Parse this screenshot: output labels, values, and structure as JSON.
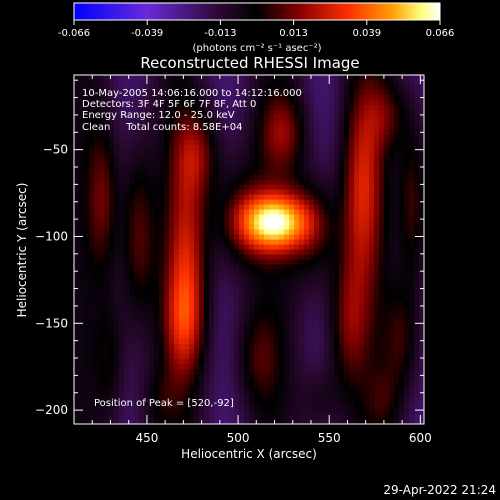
{
  "colorbar": {
    "ticks": [
      "-0.066",
      "-0.039",
      "-0.013",
      "0.013",
      "0.039",
      "0.066"
    ],
    "label": "(photons cm⁻² s⁻¹ asec⁻²)",
    "range": [
      -0.066,
      0.066
    ],
    "colormap": [
      "#0000ff",
      "#6a2ad8",
      "#2a0830",
      "#000000",
      "#8a0000",
      "#ff3000",
      "#ffa000",
      "#ffff80",
      "#ffffff"
    ]
  },
  "chart_data": {
    "type": "heatmap",
    "title": "Reconstructed RHESSI Image",
    "xlabel": "Heliocentric X (arcsec)",
    "ylabel": "Heliocentric Y (arcsec)",
    "xlim": [
      410,
      602
    ],
    "ylim": [
      -208,
      -7
    ],
    "xticks": [
      450,
      500,
      550,
      600
    ],
    "yticks": [
      -50,
      -100,
      -150,
      -200
    ],
    "xtick_labels": [
      "450",
      "500",
      "550",
      "600"
    ],
    "ytick_labels": [
      "−50",
      "−100",
      "−150",
      "−200"
    ],
    "peak": {
      "x": 520,
      "y": -92,
      "value": 0.066
    },
    "annotations": {
      "line1": "10-May-2005 14:06:16.000 to 14:12:16.000",
      "line2": "Detectors: 3F 4F 5F 6F 7F 8F, Att 0",
      "line3": "Energy Range: 12.0 - 25.0 keV",
      "line4": "Clean     Total counts: 8.58E+04",
      "peak_label": "Position of Peak = [520,-92]"
    }
  },
  "footer": {
    "timestamp": "29-Apr-2022 21:24"
  }
}
